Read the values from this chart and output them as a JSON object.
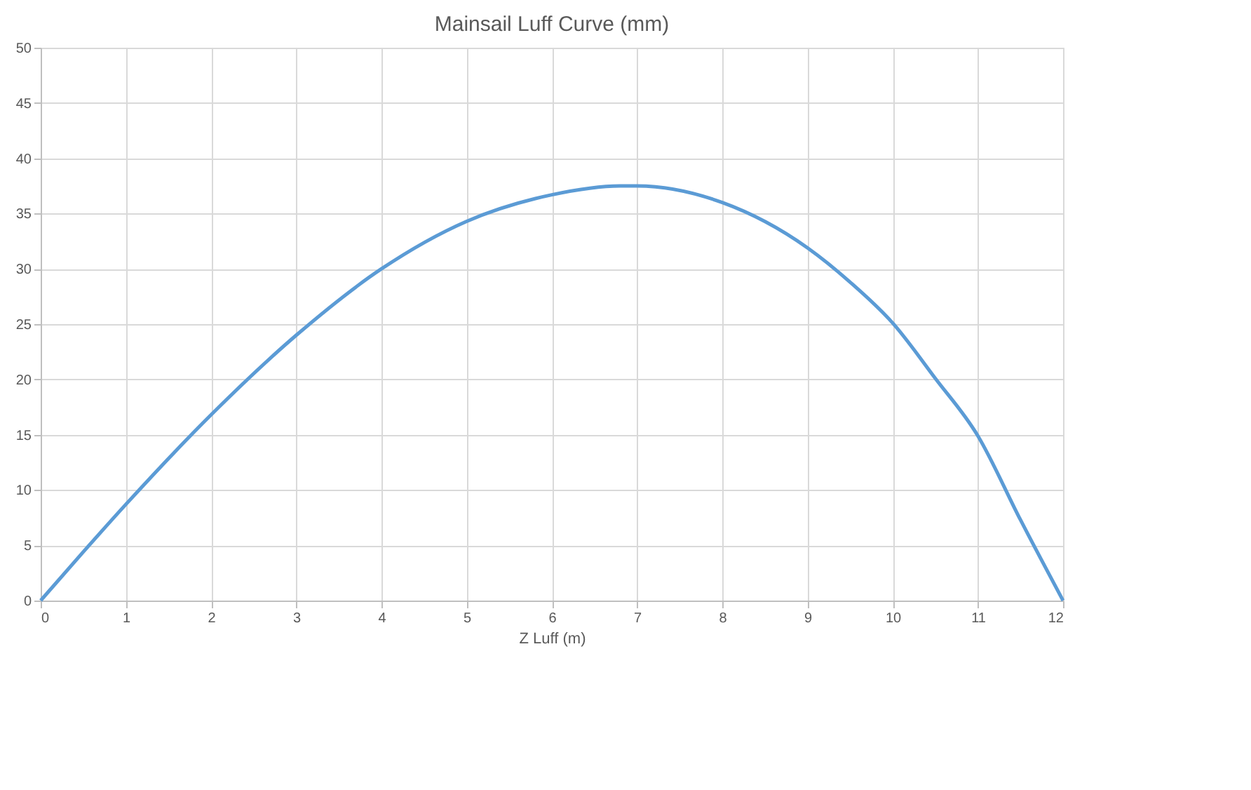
{
  "chart_data": {
    "type": "line",
    "title": "Mainsail Luff Curve (mm)",
    "xlabel": "Z Luff (m)",
    "x": [
      0,
      0.5,
      1,
      2,
      3,
      4,
      5,
      6,
      6.8,
      7,
      8,
      9,
      9.5,
      10,
      10.5,
      11,
      11.5,
      12
    ],
    "series": [
      {
        "color": "#5b9bd5",
        "values": [
          0,
          4.4,
          8.7,
          16.8,
          24.0,
          30.0,
          34.3,
          36.7,
          37.5,
          37.5,
          36.0,
          31.9,
          28.8,
          25.1,
          20.1,
          14.9,
          7.3,
          0
        ]
      }
    ],
    "xlim": [
      0,
      12
    ],
    "xticks": [
      0,
      1,
      2,
      3,
      4,
      5,
      6,
      7,
      8,
      9,
      10,
      11,
      12
    ],
    "ylim": [
      0,
      50
    ],
    "yticks": [
      0,
      5,
      10,
      15,
      20,
      25,
      30,
      35,
      40,
      45,
      50
    ],
    "grid": true,
    "marker": "none",
    "line_style": "solid"
  }
}
